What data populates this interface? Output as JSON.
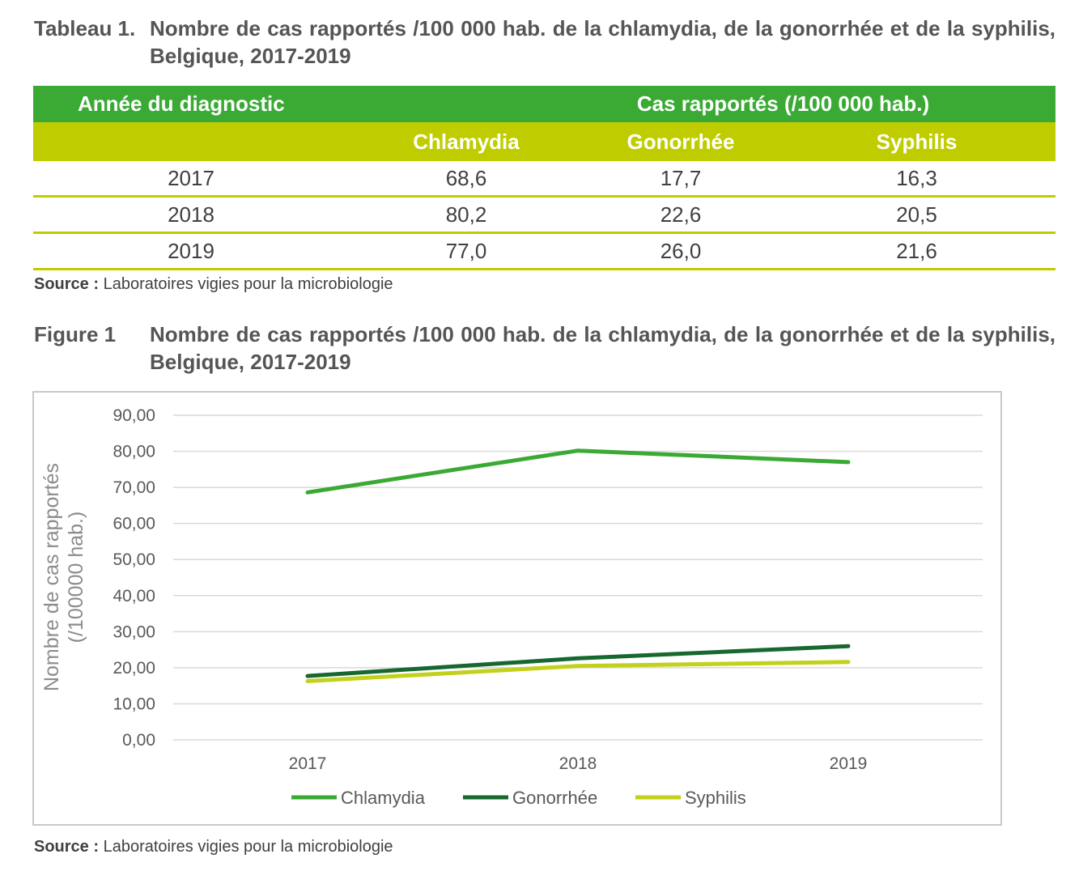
{
  "table": {
    "label": "Tableau 1.",
    "title": "Nombre de cas rapportés /100 000 hab. de la chlamydia, de la gonorrhée et de la syphilis, Belgique, 2017-2019",
    "header_year": "Année du diagnostic",
    "header_cases": "Cas rapportés (/100 000 hab.)",
    "columns": [
      "Chlamydia",
      "Gonorrhée",
      "Syphilis"
    ],
    "rows": [
      {
        "year": "2017",
        "values": [
          "68,6",
          "17,7",
          "16,3"
        ]
      },
      {
        "year": "2018",
        "values": [
          "80,2",
          "22,6",
          "20,5"
        ]
      },
      {
        "year": "2019",
        "values": [
          "77,0",
          "26,0",
          "21,6"
        ]
      }
    ],
    "source_label": "Source :",
    "source_text": " Laboratoires vigies pour la microbiologie"
  },
  "figure": {
    "label": "Figure 1",
    "title": "Nombre de cas rapportés /100 000 hab. de la chlamydia, de la gonorrhée et de la syphilis, Belgique, 2017-2019",
    "source_label": "Source :",
    "source_text": " Laboratoires vigies pour la microbiologie"
  },
  "chart_data": {
    "type": "line",
    "title": "",
    "xlabel": "",
    "ylabel": "Nombre de cas rapportés (/100000 hab.)",
    "ylabel_lines": [
      "Nombre de cas rapportés",
      "(/100000 hab.)"
    ],
    "x": [
      "2017",
      "2018",
      "2019"
    ],
    "ylim": [
      0,
      90
    ],
    "yticks": [
      "0,00",
      "10,00",
      "20,00",
      "30,00",
      "40,00",
      "50,00",
      "60,00",
      "70,00",
      "80,00",
      "90,00"
    ],
    "grid": true,
    "legend": "bottom",
    "series": [
      {
        "name": "Chlamydia",
        "values": [
          68.6,
          80.2,
          77.0
        ],
        "color": "#3aaa35"
      },
      {
        "name": "Gonorrhée",
        "values": [
          17.7,
          22.6,
          26.0
        ],
        "color": "#17682f"
      },
      {
        "name": "Syphilis",
        "values": [
          16.3,
          20.5,
          21.6
        ],
        "color": "#c2d11b"
      }
    ]
  },
  "colors": {
    "header_green": "#3aaa35",
    "header_lime": "#bfcd00",
    "grid": "#d9d9d9",
    "axis_text": "#595959"
  }
}
